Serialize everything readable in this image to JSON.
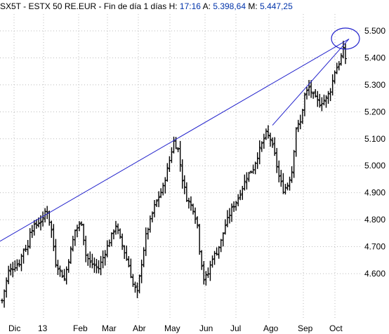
{
  "header": {
    "symbol": "SX5T - ESTX 50 RE.EUR",
    "period": "Fin de día 1 días",
    "h_label": "H:",
    "h_value": "17:16",
    "a_label": "A:",
    "a_value": "5.398,64",
    "m_label": "M:",
    "m_value": "5.447,25"
  },
  "chart_data": {
    "type": "bar",
    "style": "ohlc",
    "title": "SX5T - ESTX 50 RE.EUR",
    "x_tick_labels": [
      "Dic",
      "13",
      "Feb",
      "Mar",
      "Abr",
      "May",
      "Jun",
      "Jul",
      "Ago",
      "Sep",
      "Oct"
    ],
    "y_tick_labels": [
      "5.500",
      "5.400",
      "5.300",
      "5.200",
      "5.100",
      "5.000",
      "4.900",
      "4.800",
      "4.700",
      "4.600"
    ],
    "y_ticks": [
      5500,
      5400,
      5300,
      5200,
      5100,
      5000,
      4900,
      4800,
      4700,
      4600
    ],
    "ylim": [
      4480,
      5560
    ],
    "grid": true,
    "colors": {
      "bars": "#000000",
      "trendlines": "#2222cc",
      "grid": "#bbbbbb"
    },
    "price_path_knots": [
      [
        0,
        4500
      ],
      [
        3,
        4610
      ],
      [
        8,
        4640
      ],
      [
        10,
        4690
      ],
      [
        12,
        4700
      ],
      [
        13,
        4760
      ],
      [
        17,
        4790
      ],
      [
        19,
        4800
      ],
      [
        20,
        4830
      ],
      [
        21,
        4830
      ],
      [
        23,
        4760
      ],
      [
        25,
        4640
      ],
      [
        29,
        4580
      ],
      [
        34,
        4760
      ],
      [
        37,
        4790
      ],
      [
        39,
        4670
      ],
      [
        41,
        4640
      ],
      [
        45,
        4620
      ],
      [
        49,
        4700
      ],
      [
        53,
        4780
      ],
      [
        57,
        4680
      ],
      [
        59,
        4630
      ],
      [
        61,
        4560
      ],
      [
        63,
        4530
      ],
      [
        65,
        4640
      ],
      [
        67,
        4740
      ],
      [
        71,
        4850
      ],
      [
        75,
        4920
      ],
      [
        78,
        5020
      ],
      [
        80,
        5090
      ],
      [
        82,
        5060
      ],
      [
        84,
        4950
      ],
      [
        86,
        4880
      ],
      [
        89,
        4840
      ],
      [
        91,
        4780
      ],
      [
        92,
        4690
      ],
      [
        94,
        4580
      ],
      [
        96,
        4600
      ],
      [
        98,
        4660
      ],
      [
        100,
        4680
      ],
      [
        102,
        4720
      ],
      [
        104,
        4780
      ],
      [
        107,
        4840
      ],
      [
        110,
        4880
      ],
      [
        114,
        4960
      ],
      [
        117,
        4990
      ],
      [
        120,
        5060
      ],
      [
        123,
        5120
      ],
      [
        125,
        5100
      ],
      [
        127,
        5040
      ],
      [
        129,
        4960
      ],
      [
        131,
        4910
      ],
      [
        133,
        4930
      ],
      [
        135,
        4980
      ],
      [
        137,
        5140
      ],
      [
        139,
        5160
      ],
      [
        141,
        5260
      ],
      [
        143,
        5290
      ],
      [
        145,
        5260
      ],
      [
        148,
        5230
      ],
      [
        151,
        5250
      ],
      [
        153,
        5280
      ],
      [
        155,
        5350
      ],
      [
        157,
        5380
      ],
      [
        159,
        5430
      ],
      [
        160,
        5398.64
      ]
    ],
    "trendline_1": {
      "start": [
        "Nov",
        4720
      ],
      "end": [
        "Oct",
        5470
      ]
    },
    "trendline_2": {
      "start": [
        "Ago",
        5150
      ],
      "end": [
        "Oct",
        5470
      ]
    },
    "highlight": {
      "shape": "ellipse",
      "near_value": 5500
    }
  }
}
